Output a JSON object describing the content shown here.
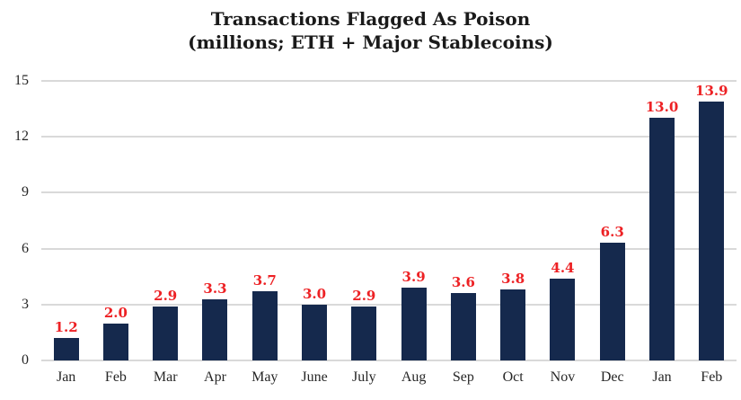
{
  "chart_data": {
    "type": "bar",
    "title": "Transactions Flagged As Poison",
    "subtitle": "(millions; ETH + Major Stablecoins)",
    "categories": [
      "Jan",
      "Feb",
      "Mar",
      "Apr",
      "May",
      "June",
      "July",
      "Aug",
      "Sep",
      "Oct",
      "Nov",
      "Dec",
      "Jan",
      "Feb"
    ],
    "values": [
      1.2,
      2.0,
      2.9,
      3.3,
      3.7,
      3.0,
      2.9,
      3.9,
      3.6,
      3.8,
      4.4,
      6.3,
      13.0,
      13.9
    ],
    "value_labels": [
      "1.2",
      "2.0",
      "2.9",
      "3.3",
      "3.7",
      "3.0",
      "2.9",
      "3.9",
      "3.6",
      "3.8",
      "4.4",
      "6.3",
      "13.0",
      "13.9"
    ],
    "xlabel": "",
    "ylabel": "",
    "ylim": [
      0,
      15
    ],
    "yticks": [
      0,
      3,
      6,
      9,
      12,
      15
    ],
    "grid": "horizontal",
    "legend_position": "none",
    "colors": {
      "bar": "#15294d",
      "value_label": "#ed2124",
      "gridline": "#d9d9d9",
      "axis_text": "#262626",
      "title_text": "#1a1a1a",
      "background": "#ffffff"
    }
  }
}
